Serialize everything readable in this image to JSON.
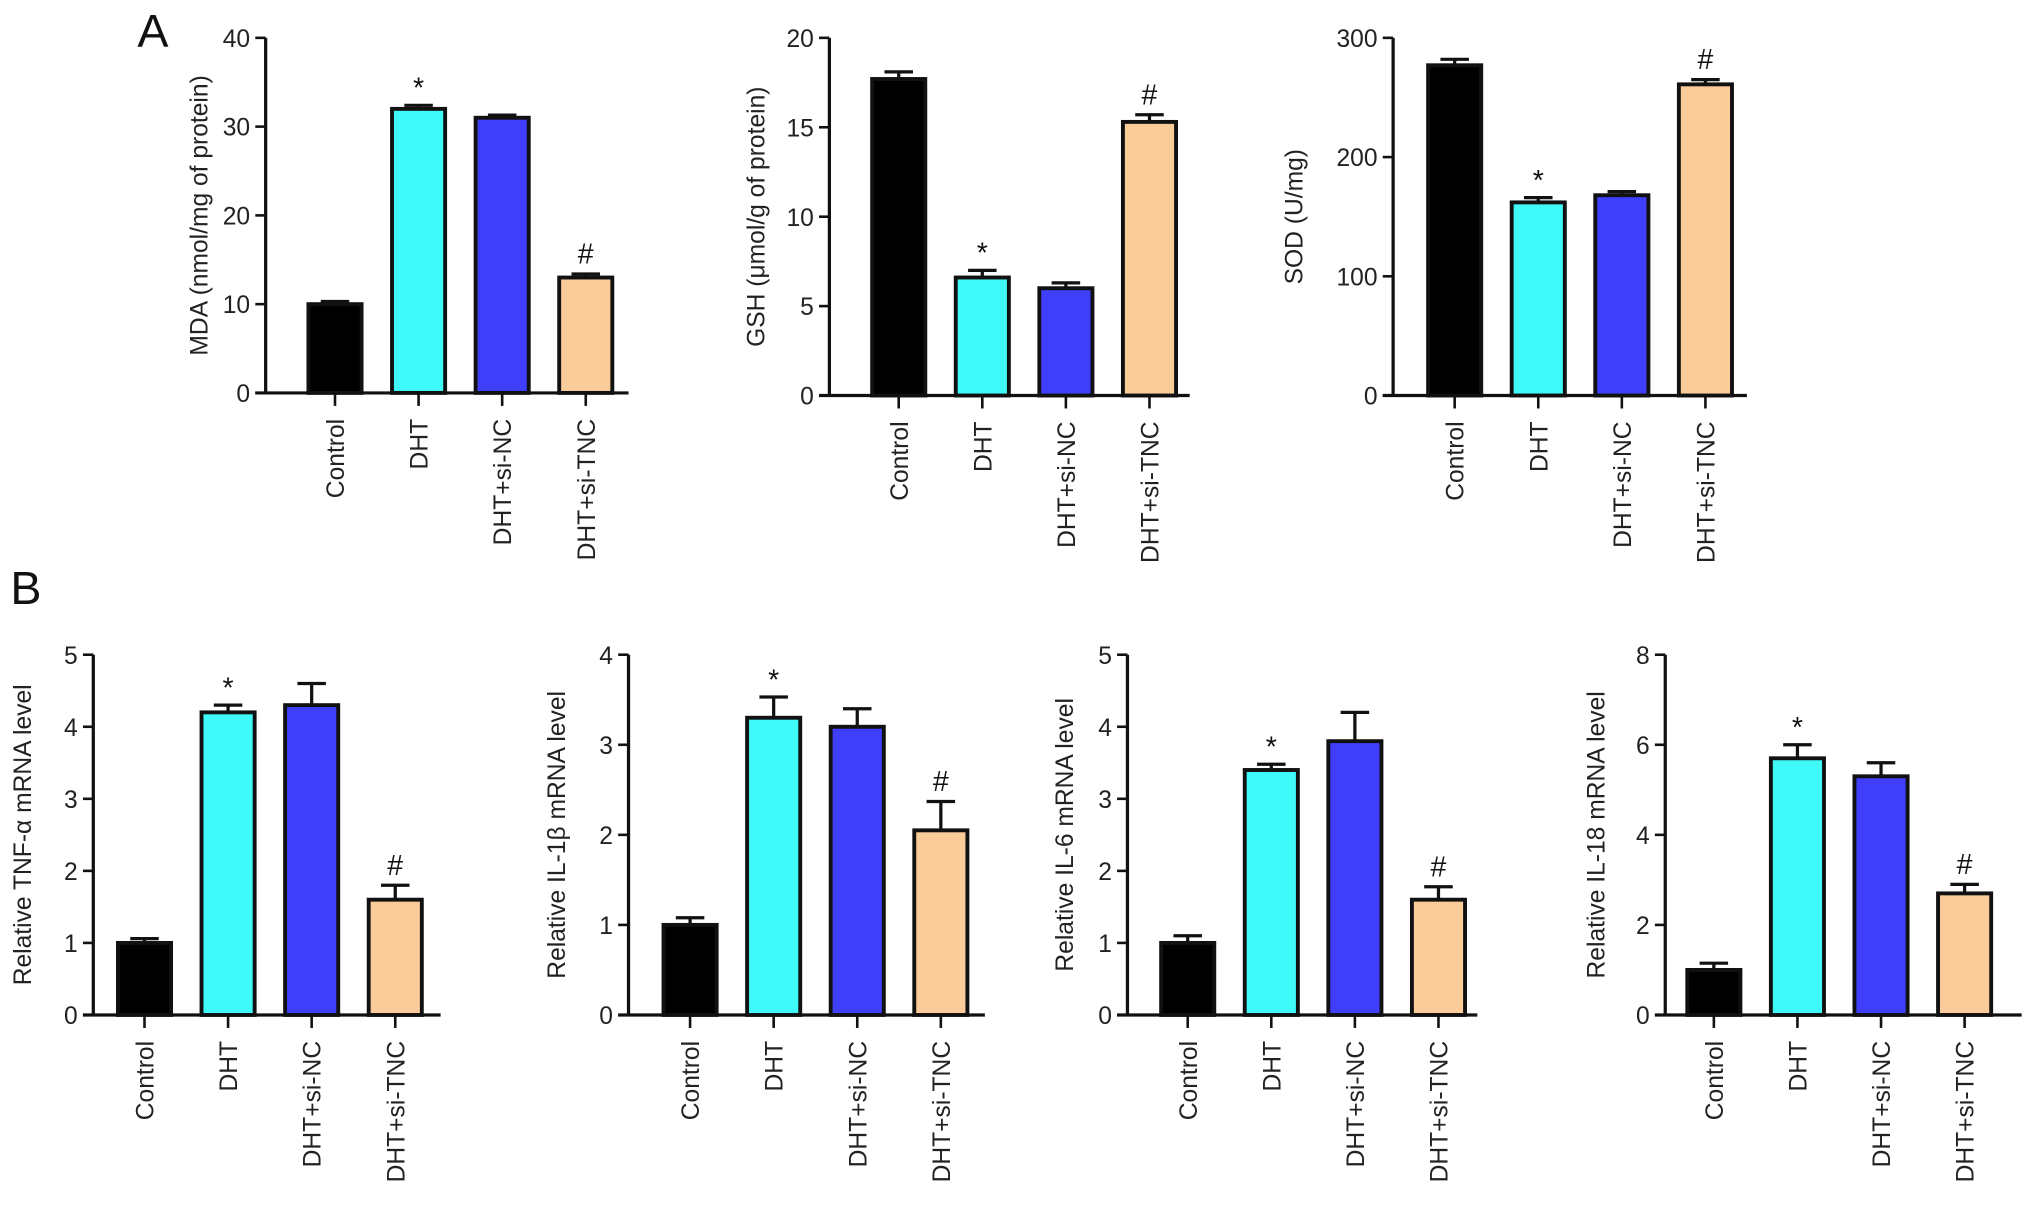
{
  "panel_labels": [
    "A",
    "B"
  ],
  "colors": {
    "Control": "#000000",
    "DHT": "#3ff8f8",
    "DHT+si-NC": "#3f3ffb",
    "DHT+si-TNC": "#f9cc99"
  },
  "chart_data": [
    {
      "type": "bar",
      "panel": "A",
      "ylabel": "MDA (nmol/mg of protein)",
      "ylim": [
        0,
        40
      ],
      "yticks": [
        0,
        10,
        20,
        30,
        40
      ],
      "categories": [
        "Control",
        "DHT",
        "DHT+si-NC",
        "DHT+si-TNC"
      ],
      "values": [
        10,
        32,
        31,
        13
      ],
      "errors": [
        0.3,
        0.4,
        0.3,
        0.4
      ],
      "annotations": [
        "",
        "*",
        "",
        "#"
      ]
    },
    {
      "type": "bar",
      "panel": "A",
      "ylabel": "GSH (μmol/g of protein)",
      "ylim": [
        0,
        20
      ],
      "yticks": [
        0,
        5,
        10,
        15,
        20
      ],
      "categories": [
        "Control",
        "DHT",
        "DHT+si-NC",
        "DHT+si-TNC"
      ],
      "values": [
        17.7,
        6.6,
        6.0,
        15.3
      ],
      "errors": [
        0.4,
        0.4,
        0.3,
        0.4
      ],
      "annotations": [
        "",
        "*",
        "",
        "#"
      ]
    },
    {
      "type": "bar",
      "panel": "A",
      "ylabel": "SOD (U/mg)",
      "ylim": [
        0,
        300
      ],
      "yticks": [
        0,
        100,
        200,
        300
      ],
      "categories": [
        "Control",
        "DHT",
        "DHT+si-NC",
        "DHT+si-TNC"
      ],
      "values": [
        277,
        162,
        168,
        261
      ],
      "errors": [
        5,
        4,
        3,
        4
      ],
      "annotations": [
        "",
        "*",
        "",
        "#"
      ]
    },
    {
      "type": "bar",
      "panel": "B",
      "ylabel": "Relative TNF-α mRNA level",
      "ylim": [
        0,
        5
      ],
      "yticks": [
        0,
        1,
        2,
        3,
        4,
        5
      ],
      "categories": [
        "Control",
        "DHT",
        "DHT+si-NC",
        "DHT+si-TNC"
      ],
      "values": [
        1.0,
        4.2,
        4.3,
        1.6
      ],
      "errors": [
        0.06,
        0.1,
        0.3,
        0.2
      ],
      "annotations": [
        "",
        "*",
        "",
        "#"
      ]
    },
    {
      "type": "bar",
      "panel": "B",
      "ylabel": "Relative IL-1β mRNA level",
      "ylim": [
        0,
        4
      ],
      "yticks": [
        0,
        1,
        2,
        3,
        4
      ],
      "categories": [
        "Control",
        "DHT",
        "DHT+si-NC",
        "DHT+si-TNC"
      ],
      "values": [
        1.0,
        3.3,
        3.2,
        2.05
      ],
      "errors": [
        0.08,
        0.23,
        0.2,
        0.32
      ],
      "annotations": [
        "",
        "*",
        "",
        "#"
      ]
    },
    {
      "type": "bar",
      "panel": "B",
      "ylabel": "Relative IL-6 mRNA level",
      "ylim": [
        0,
        5
      ],
      "yticks": [
        0,
        1,
        2,
        3,
        4,
        5
      ],
      "categories": [
        "Control",
        "DHT",
        "DHT+si-NC",
        "DHT+si-TNC"
      ],
      "values": [
        1.0,
        3.4,
        3.8,
        1.6
      ],
      "errors": [
        0.1,
        0.08,
        0.4,
        0.18
      ],
      "annotations": [
        "",
        "*",
        "",
        "#"
      ]
    },
    {
      "type": "bar",
      "panel": "B",
      "ylabel": "Relative IL-18 mRNA level",
      "ylim": [
        0,
        8
      ],
      "yticks": [
        0,
        2,
        4,
        6,
        8
      ],
      "categories": [
        "Control",
        "DHT",
        "DHT+si-NC",
        "DHT+si-TNC"
      ],
      "values": [
        1.0,
        5.7,
        5.3,
        2.7
      ],
      "errors": [
        0.15,
        0.3,
        0.3,
        0.2
      ],
      "annotations": [
        "",
        "*",
        "",
        "#"
      ]
    }
  ]
}
